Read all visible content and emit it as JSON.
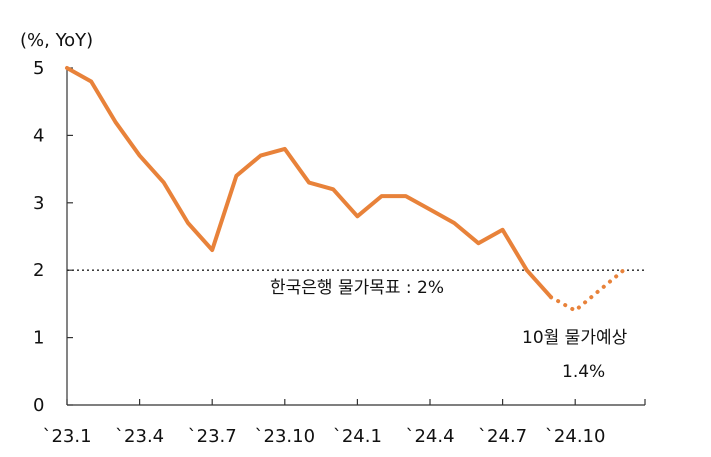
{
  "chart_data": {
    "type": "line",
    "ylabel": "(%, YoY)",
    "ylim": [
      0,
      5
    ],
    "yticks": [
      "0",
      "1",
      "2",
      "3",
      "4",
      "5"
    ],
    "xtick_labels": [
      "`23.1",
      "`23.4",
      "`23.7",
      "`23.10",
      "`24.1",
      "`24.4",
      "`24.7",
      "`24.10"
    ],
    "series": [
      {
        "style": "solid",
        "color": "#E8823A",
        "x": [
          "2023-01",
          "2023-02",
          "2023-03",
          "2023-04",
          "2023-05",
          "2023-06",
          "2023-07",
          "2023-08",
          "2023-09",
          "2023-10",
          "2023-11",
          "2023-12",
          "2024-01",
          "2024-02",
          "2024-03",
          "2024-04",
          "2024-05",
          "2024-06",
          "2024-07",
          "2024-08",
          "2024-09"
        ],
        "values": [
          5.0,
          4.8,
          4.2,
          3.7,
          3.3,
          2.7,
          2.3,
          3.4,
          3.7,
          3.8,
          3.3,
          3.2,
          2.8,
          3.1,
          3.1,
          2.9,
          2.7,
          2.4,
          2.6,
          2.0,
          1.6
        ]
      },
      {
        "style": "dotted",
        "color": "#E8823A",
        "x": [
          "2024-09",
          "2024-10",
          "2024-11",
          "2024-12"
        ],
        "values": [
          1.6,
          1.4,
          1.7,
          2.0
        ]
      }
    ],
    "reference_line": {
      "value": 2,
      "style": "dotted",
      "label": "한국은행 물가목표 : 2%"
    },
    "annotations": [
      {
        "text": "10월 물가예상"
      },
      {
        "text": "1.4%"
      }
    ]
  }
}
